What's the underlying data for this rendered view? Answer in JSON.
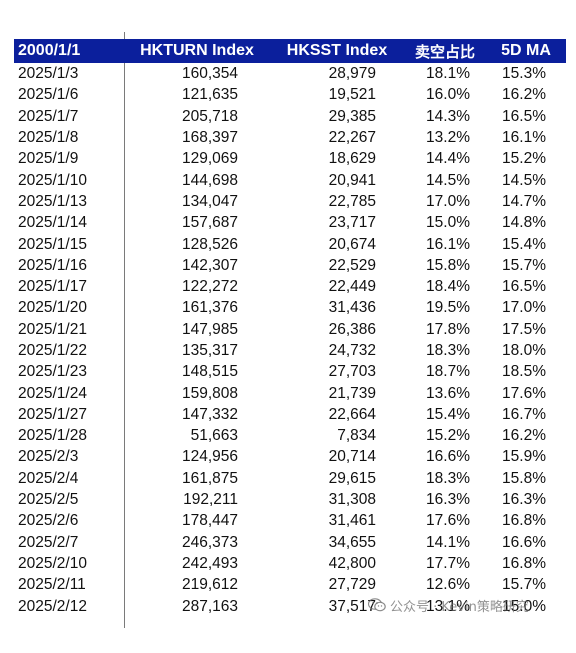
{
  "table": {
    "headers": [
      "2000/1/1",
      "HKTURN Index",
      "HKSST Index",
      "卖空占比",
      "5D MA"
    ],
    "rows": [
      [
        "2025/1/3",
        "160,354",
        "28,979",
        "18.1%",
        "15.3%"
      ],
      [
        "2025/1/6",
        "121,635",
        "19,521",
        "16.0%",
        "16.2%"
      ],
      [
        "2025/1/7",
        "205,718",
        "29,385",
        "14.3%",
        "16.5%"
      ],
      [
        "2025/1/8",
        "168,397",
        "22,267",
        "13.2%",
        "16.1%"
      ],
      [
        "2025/1/9",
        "129,069",
        "18,629",
        "14.4%",
        "15.2%"
      ],
      [
        "2025/1/10",
        "144,698",
        "20,941",
        "14.5%",
        "14.5%"
      ],
      [
        "2025/1/13",
        "134,047",
        "22,785",
        "17.0%",
        "14.7%"
      ],
      [
        "2025/1/14",
        "157,687",
        "23,717",
        "15.0%",
        "14.8%"
      ],
      [
        "2025/1/15",
        "128,526",
        "20,674",
        "16.1%",
        "15.4%"
      ],
      [
        "2025/1/16",
        "142,307",
        "22,529",
        "15.8%",
        "15.7%"
      ],
      [
        "2025/1/17",
        "122,272",
        "22,449",
        "18.4%",
        "16.5%"
      ],
      [
        "2025/1/20",
        "161,376",
        "31,436",
        "19.5%",
        "17.0%"
      ],
      [
        "2025/1/21",
        "147,985",
        "26,386",
        "17.8%",
        "17.5%"
      ],
      [
        "2025/1/22",
        "135,317",
        "24,732",
        "18.3%",
        "18.0%"
      ],
      [
        "2025/1/23",
        "148,515",
        "27,703",
        "18.7%",
        "18.5%"
      ],
      [
        "2025/1/24",
        "159,808",
        "21,739",
        "13.6%",
        "17.6%"
      ],
      [
        "2025/1/27",
        "147,332",
        "22,664",
        "15.4%",
        "16.7%"
      ],
      [
        "2025/1/28",
        "51,663",
        "7,834",
        "15.2%",
        "16.2%"
      ],
      [
        "2025/2/3",
        "124,956",
        "20,714",
        "16.6%",
        "15.9%"
      ],
      [
        "2025/2/4",
        "161,875",
        "29,615",
        "18.3%",
        "15.8%"
      ],
      [
        "2025/2/5",
        "192,211",
        "31,308",
        "16.3%",
        "16.3%"
      ],
      [
        "2025/2/6",
        "178,447",
        "31,461",
        "17.6%",
        "16.8%"
      ],
      [
        "2025/2/7",
        "246,373",
        "34,655",
        "14.1%",
        "16.6%"
      ],
      [
        "2025/2/10",
        "242,493",
        "42,800",
        "17.7%",
        "16.8%"
      ],
      [
        "2025/2/11",
        "219,612",
        "27,729",
        "12.6%",
        "15.7%"
      ],
      [
        "2025/2/12",
        "287,163",
        "37,517",
        "13.1%",
        "15.0%"
      ]
    ]
  },
  "watermark": {
    "icon": "wechat-icon",
    "text": "公众号 · Kevin策略研究"
  }
}
